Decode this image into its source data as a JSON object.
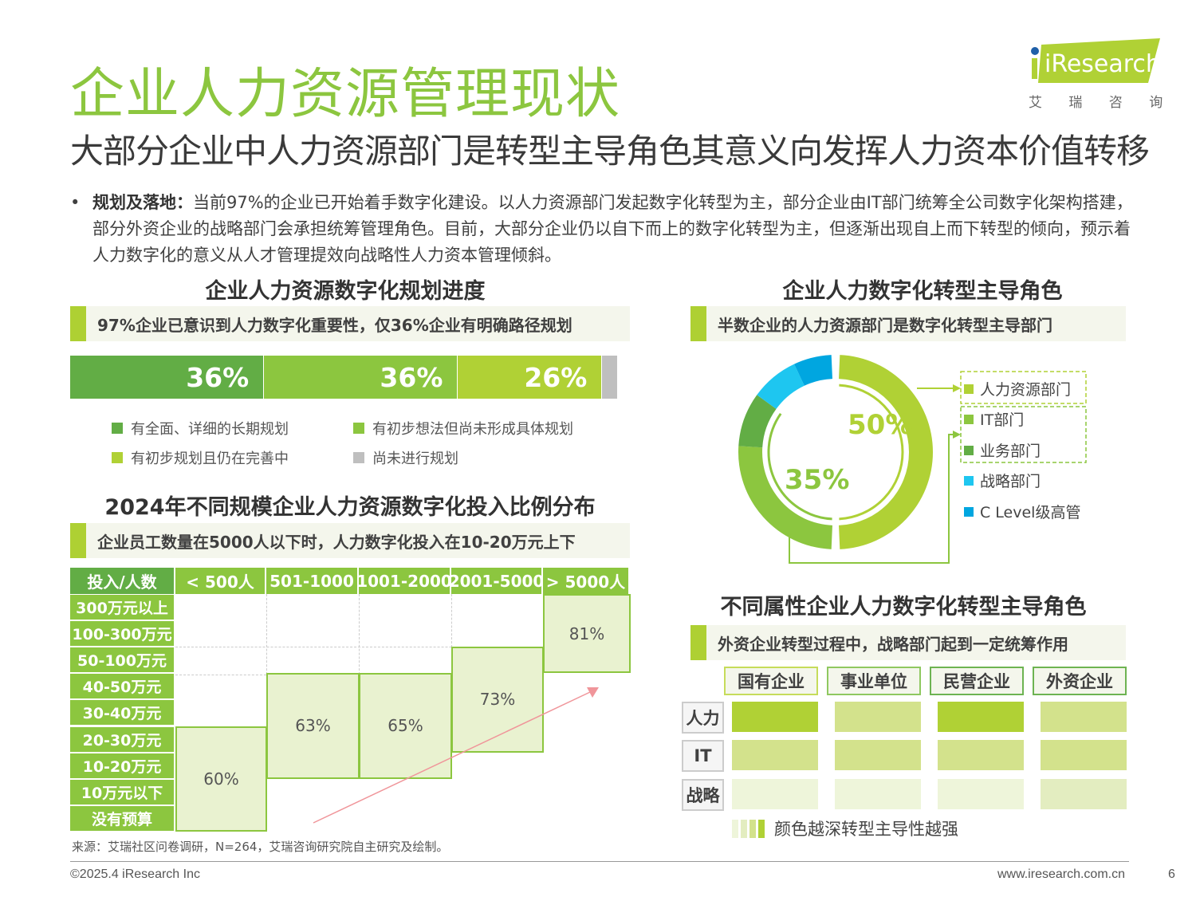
{
  "header": {
    "title": "企业人力资源管理现状",
    "subtitle": "大部分企业中人力资源部门是转型主导角色其意义向发挥人力资本价值转移",
    "logo": {
      "brand": "iResearch",
      "cn": "艾 瑞 咨 询"
    }
  },
  "bullet": {
    "label": "规划及落地：",
    "text": "当前97%的企业已开始着手数字化建设。以人力资源部门发起数字化转型为主，部分企业由IT部门统筹全公司数字化架构搭建，部分外资企业的战略部门会承担统筹管理角色。目前，大部分企业仍以自下而上的数字化转型为主，但逐渐出现自上而下转型的倾向，预示着人力数字化的意义从人才管理提效向战略性人力资本管理倾斜。"
  },
  "colors": {
    "accent": "#8cc63f",
    "dark_green": "#62ad45",
    "mid_green": "#8cc63f",
    "yellow_green": "#b0d135",
    "grey": "#bfbfbf",
    "sky": "#1ec6f0",
    "blue": "#00a6e0",
    "arrow": "#f0959a"
  },
  "chart_data": [
    {
      "type": "bar",
      "stacked": true,
      "orientation": "horizontal",
      "title": "企业人力资源数字化规划进度",
      "highlight": "97%企业已意识到人力数字化重要性，仅36%企业有明确路径规划",
      "series": [
        {
          "name": "有全面、详细的长期规划",
          "value": 36,
          "label": "36%",
          "color": "#62ad45"
        },
        {
          "name": "有初步想法但尚未形成具体规划",
          "value": 36,
          "label": "36%",
          "color": "#8cc63f"
        },
        {
          "name": "有初步规划且仍在完善中",
          "value": 26,
          "label": "26%",
          "color": "#b0d135"
        },
        {
          "name": "尚未进行规划",
          "value": 3,
          "label": "",
          "color": "#bfbfbf"
        }
      ],
      "legend": "bottom"
    },
    {
      "type": "table",
      "title": "2024年不同规模企业人力资源数字化投入比例分布",
      "highlight": "企业员工数量在5000人以下时，人力数字化投入在10-20万元上下",
      "corner": "投入/人数",
      "columns": [
        "< 500人",
        "501-1000",
        "1001-2000",
        "2001-5000",
        "> 5000人"
      ],
      "rows": [
        "300万元以上",
        "100-300万元",
        "50-100万元",
        "40-50万元",
        "30-40万元",
        "20-30万元",
        "10-20万元",
        "10万元以下",
        "没有预算"
      ],
      "blocks": [
        {
          "column": "< 500人",
          "from": "没有预算",
          "to": "20-30万元",
          "value": "60%"
        },
        {
          "column": "501-1000",
          "from": "10-20万元",
          "to": "40-50万元",
          "value": "63%"
        },
        {
          "column": "1001-2000",
          "from": "10-20万元",
          "to": "40-50万元",
          "value": "65%"
        },
        {
          "column": "2001-5000",
          "from": "20-30万元",
          "to": "50-100万元",
          "value": "73%"
        },
        {
          "column": "> 5000人",
          "from": "50-100万元",
          "to": "300万元以上",
          "value": "81%"
        }
      ],
      "trend_arrow": "up-right"
    },
    {
      "type": "pie",
      "donut": true,
      "title": "企业人力数字化转型主导角色",
      "highlight": "半数企业的人力资源部门是数字化转型主导部门",
      "slices": [
        {
          "name": "人力资源部门",
          "value": 50,
          "color": "#b0d135"
        },
        {
          "name": "IT部门",
          "value": 26,
          "color": "#8cc63f"
        },
        {
          "name": "业务部门",
          "value": 9,
          "color": "#62ad45"
        },
        {
          "name": "战略部门",
          "value": 8,
          "color": "#1ec6f0"
        },
        {
          "name": "C Level级高管",
          "value": 7,
          "color": "#00a6e0"
        }
      ],
      "labels": [
        {
          "text": "50%",
          "covers": [
            "人力资源部门"
          ]
        },
        {
          "text": "35%",
          "covers": [
            "IT部门",
            "业务部门"
          ]
        }
      ],
      "legend": "right"
    },
    {
      "type": "heatmap",
      "title": "不同属性企业人力数字化转型主导角色",
      "highlight": "外资企业转型过程中，战略部门起到一定统筹作用",
      "columns": [
        "国有企业",
        "事业单位",
        "民营企业",
        "外资企业"
      ],
      "rows": [
        "人力",
        "IT",
        "战略"
      ],
      "levels": [
        [
          4,
          3,
          4,
          3
        ],
        [
          3,
          3,
          3,
          3
        ],
        [
          1,
          1,
          1,
          2
        ]
      ],
      "level_colors": [
        "#eef5da",
        "#e3edc0",
        "#d3e28c",
        "#b0d135"
      ],
      "legend_text": "颜色越深转型主导性越强"
    }
  ],
  "footer": {
    "source": "来源：艾瑞社区问卷调研，N=264，艾瑞咨询研究院自主研究及绘制。",
    "copyright": "©2025.4 iResearch Inc",
    "website": "www.iresearch.com.cn",
    "page": "6"
  }
}
